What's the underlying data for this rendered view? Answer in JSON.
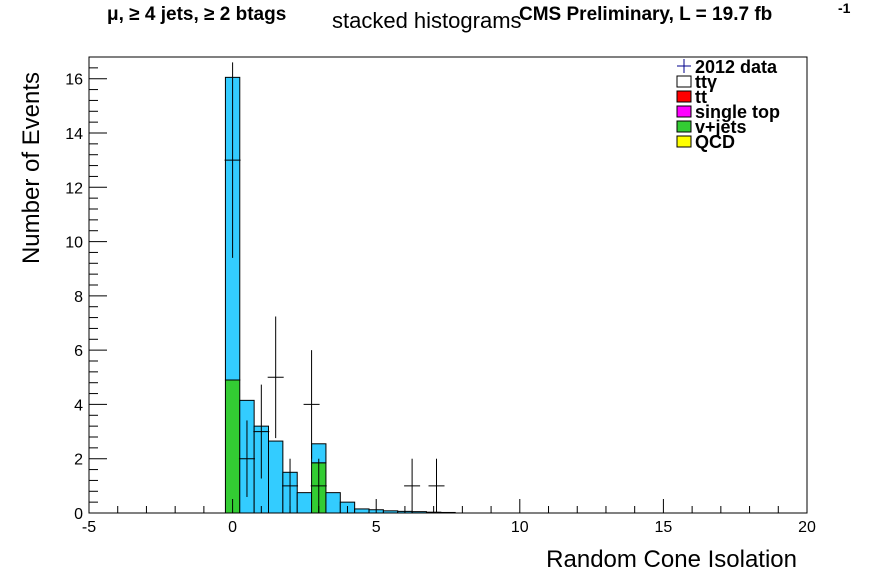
{
  "header": {
    "selection": "μ, ≥ 4 jets, ≥ 2 btags",
    "title": "stacked histograms",
    "experiment": "CMS Preliminary, L = 19.7 fb",
    "lumi_superscript": "-1"
  },
  "chart_data": {
    "type": "bar",
    "stacked": true,
    "xlabel": "Random Cone Isolation",
    "ylabel": "Number of Events",
    "xlim": [
      -5,
      20
    ],
    "ylim": [
      0,
      16.8
    ],
    "x_ticks": [
      -5,
      0,
      5,
      10,
      15,
      20
    ],
    "y_ticks": [
      0,
      2,
      4,
      6,
      8,
      10,
      12,
      14,
      16
    ],
    "bin_width": 0.5,
    "bin_low_edges": [
      -0.25,
      0.25,
      0.75,
      1.25,
      1.75,
      2.25,
      2.75,
      3.25,
      3.75,
      4.25,
      4.75,
      5.25,
      5.75,
      6.25,
      6.75,
      7.25
    ],
    "legend_position": "top-right",
    "series": [
      {
        "name": "QCD",
        "color": "#ffff00",
        "values": [
          0,
          0,
          0,
          0,
          0,
          0,
          0,
          0,
          0,
          0,
          0,
          0,
          0,
          0,
          0,
          0
        ]
      },
      {
        "name": "v+jets",
        "color": "#33cc33",
        "values": [
          4.9,
          0,
          0,
          0,
          0,
          0,
          1.85,
          0,
          0,
          0,
          0,
          0,
          0,
          0,
          0,
          0
        ]
      },
      {
        "name": "single top",
        "color": "#ff00ff",
        "values": [
          0,
          0,
          0,
          0,
          0,
          0,
          0,
          0,
          0,
          0,
          0,
          0,
          0,
          0,
          0,
          0
        ]
      },
      {
        "name": "tt",
        "color": "#ff0000",
        "values": [
          0,
          0,
          0,
          0,
          0,
          0,
          0,
          0,
          0,
          0,
          0,
          0,
          0,
          0,
          0,
          0
        ]
      },
      {
        "name": "ttγ",
        "color": "#33ccff",
        "values": [
          11.15,
          4.15,
          3.2,
          2.65,
          1.5,
          0.75,
          0.7,
          0.75,
          0.4,
          0.15,
          0.12,
          0.08,
          0.06,
          0.05,
          0.03,
          0.02
        ]
      }
    ],
    "data_series": {
      "name": "2012 data",
      "color": "#000000",
      "points": [
        {
          "x": 0.0,
          "y": 13,
          "err": 3.6
        },
        {
          "x": 0.5,
          "y": 2,
          "err": 1.41
        },
        {
          "x": 1.0,
          "y": 3,
          "err": 1.73
        },
        {
          "x": 1.5,
          "y": 5,
          "err": 2.24
        },
        {
          "x": 2.0,
          "y": 1,
          "err": 1.0
        },
        {
          "x": 2.75,
          "y": 4,
          "err": 2.0
        },
        {
          "x": 3.0,
          "y": 1,
          "err": 1.0
        },
        {
          "x": 6.25,
          "y": 1,
          "err": 1.0
        },
        {
          "x": 7.1,
          "y": 1,
          "err": 1.0
        }
      ]
    },
    "legend": [
      {
        "label": "2012 data",
        "style": "marker",
        "color": "#00008b"
      },
      {
        "label": "ttγ",
        "style": "box",
        "color": "#ffffff"
      },
      {
        "label": "tt",
        "style": "box",
        "color": "#ff0000"
      },
      {
        "label": "single top",
        "style": "box",
        "color": "#ff00ff"
      },
      {
        "label": "v+jets",
        "style": "box",
        "color": "#33cc33"
      },
      {
        "label": "QCD",
        "style": "box",
        "color": "#ffff00"
      }
    ]
  }
}
